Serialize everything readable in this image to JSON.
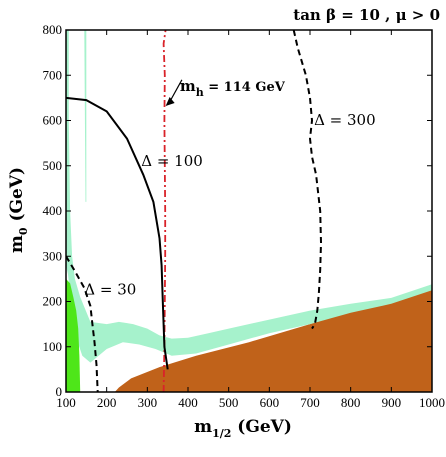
{
  "chart_data": {
    "type": "area",
    "title": "tan β = 10 ,  μ > 0",
    "xlabel": "m1/2 (GeV)",
    "ylabel": "m0 (GeV)",
    "xlim": [
      100,
      1000
    ],
    "ylim": [
      0,
      800
    ],
    "xticks": [
      100,
      200,
      300,
      400,
      500,
      600,
      700,
      800,
      900,
      1000
    ],
    "yticks": [
      0,
      100,
      200,
      300,
      400,
      500,
      600,
      700,
      800
    ],
    "colors": {
      "excluded_region": "#c0621a",
      "relic_density": "#a6f2cc",
      "bright_green": "#4ee619",
      "mh_line": "#d9232a",
      "contour": "#000000"
    },
    "regions": [
      {
        "name": "excluded_region",
        "points": [
          [
            220,
            0
          ],
          [
            1000,
            0
          ],
          [
            1000,
            230
          ],
          [
            880,
            200
          ],
          [
            700,
            150
          ],
          [
            550,
            110
          ],
          [
            420,
            80
          ],
          [
            330,
            55
          ],
          [
            260,
            30
          ],
          [
            230,
            10
          ]
        ]
      },
      {
        "name": "relic_density_band",
        "points": [
          [
            100,
            800
          ],
          [
            107,
            800
          ],
          [
            107,
            600
          ],
          [
            110,
            400
          ],
          [
            115,
            300
          ],
          [
            122,
            250
          ],
          [
            135,
            210
          ],
          [
            160,
            155
          ],
          [
            200,
            150
          ],
          [
            230,
            155
          ],
          [
            265,
            150
          ],
          [
            300,
            140
          ],
          [
            330,
            125
          ],
          [
            360,
            118
          ],
          [
            400,
            120
          ],
          [
            450,
            130
          ],
          [
            500,
            140
          ],
          [
            600,
            160
          ],
          [
            700,
            180
          ],
          [
            800,
            195
          ],
          [
            900,
            208
          ],
          [
            1000,
            238
          ],
          [
            1000,
            225
          ],
          [
            900,
            195
          ],
          [
            800,
            175
          ],
          [
            700,
            150
          ],
          [
            600,
            130
          ],
          [
            500,
            105
          ],
          [
            420,
            85
          ],
          [
            360,
            80
          ],
          [
            320,
            95
          ],
          [
            280,
            105
          ],
          [
            240,
            110
          ],
          [
            200,
            95
          ],
          [
            160,
            65
          ],
          [
            140,
            80
          ],
          [
            125,
            120
          ],
          [
            118,
            160
          ],
          [
            112,
            200
          ],
          [
            105,
            260
          ],
          [
            100,
            280
          ]
        ]
      },
      {
        "name": "relic_density_strip",
        "points": [
          [
            145,
            800
          ],
          [
            150,
            800
          ],
          [
            150,
            420
          ],
          [
            148,
            420
          ]
        ]
      },
      {
        "name": "bright_green_region",
        "points": [
          [
            100,
            0
          ],
          [
            135,
            0
          ],
          [
            133,
            80
          ],
          [
            130,
            140
          ],
          [
            125,
            180
          ],
          [
            118,
            210
          ],
          [
            110,
            240
          ],
          [
            100,
            250
          ]
        ]
      }
    ],
    "series": [
      {
        "name": "mh",
        "style": "dash-dot",
        "points": [
          [
            340,
            0
          ],
          [
            342,
            100
          ],
          [
            343,
            200
          ],
          [
            344,
            300
          ],
          [
            344,
            400
          ],
          [
            343,
            500
          ],
          [
            342,
            600
          ],
          [
            343,
            700
          ],
          [
            340,
            770
          ],
          [
            345,
            800
          ]
        ]
      },
      {
        "name": "Δ = 100",
        "style": "solid",
        "points": [
          [
            100,
            650
          ],
          [
            150,
            645
          ],
          [
            200,
            620
          ],
          [
            250,
            560
          ],
          [
            290,
            480
          ],
          [
            315,
            420
          ],
          [
            330,
            340
          ],
          [
            335,
            280
          ],
          [
            338,
            200
          ],
          [
            342,
            100
          ],
          [
            350,
            50
          ]
        ]
      },
      {
        "name": "Δ = 300",
        "style": "dashed",
        "points": [
          [
            660,
            800
          ],
          [
            670,
            760
          ],
          [
            690,
            700
          ],
          [
            700,
            650
          ],
          [
            705,
            600
          ],
          [
            700,
            560
          ],
          [
            705,
            520
          ],
          [
            715,
            480
          ],
          [
            725,
            400
          ],
          [
            727,
            330
          ],
          [
            725,
            270
          ],
          [
            722,
            220
          ],
          [
            718,
            180
          ],
          [
            712,
            150
          ],
          [
            705,
            140
          ]
        ]
      },
      {
        "name": "Δ = 30",
        "style": "dashed",
        "points": [
          [
            100,
            300
          ],
          [
            120,
            270
          ],
          [
            145,
            230
          ],
          [
            160,
            190
          ],
          [
            165,
            150
          ],
          [
            170,
            110
          ],
          [
            175,
            60
          ],
          [
            178,
            0
          ]
        ]
      }
    ],
    "annotations": [
      {
        "text": "m",
        "sub": "h",
        "tail": " = 114 GeV",
        "x": 380,
        "y": 665
      },
      {
        "text": "Δ = 300",
        "x": 710,
        "y": 590
      },
      {
        "text": "Δ = 100",
        "x": 285,
        "y": 500
      },
      {
        "text": "Δ = 30",
        "x": 145,
        "y": 215
      }
    ],
    "mh_label": {
      "m": "m",
      "sub": "h",
      "tail": " = 114 GeV"
    },
    "grid": false,
    "legend": "none"
  }
}
